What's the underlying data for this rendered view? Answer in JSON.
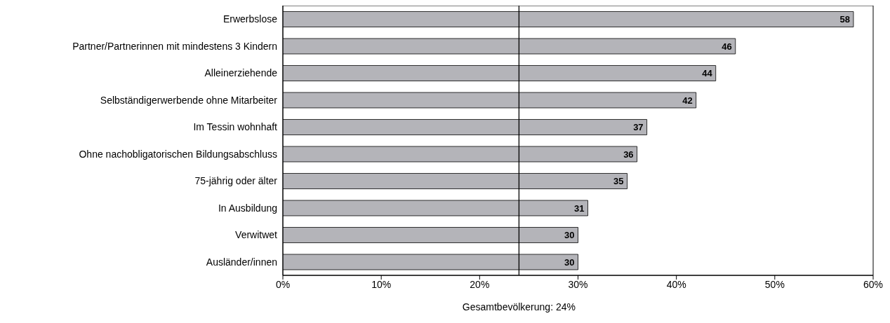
{
  "chart_data": {
    "type": "bar",
    "orientation": "horizontal",
    "categories": [
      "Erwerbslose",
      "Partner/Partnerinnen mit mindestens 3 Kindern",
      "Alleinerziehende",
      "Selbständigerwerbende ohne Mitarbeiter",
      "Im Tessin wohnhaft",
      "Ohne nachobligatorischen Bildungsabschluss",
      "75-jährig oder älter",
      "In Ausbildung",
      "Verwitwet",
      "Ausländer/innen"
    ],
    "values": [
      58,
      46,
      44,
      42,
      37,
      36,
      35,
      31,
      30,
      30
    ],
    "color": "#b4b4b9",
    "xlim": [
      0,
      60
    ],
    "xticks": [
      {
        "value": 0,
        "label": "0%"
      },
      {
        "value": 10,
        "label": "10%"
      },
      {
        "value": 20,
        "label": "20%"
      },
      {
        "value": 30,
        "label": "30%"
      },
      {
        "value": 40,
        "label": "40%"
      },
      {
        "value": 50,
        "label": "50%"
      },
      {
        "value": 60,
        "label": "60%"
      }
    ],
    "ref_lines": [
      {
        "axis": "x",
        "value": 24,
        "label": "Gesamtbevölkerung: 24%",
        "color": "#000000"
      }
    ],
    "data_labels": true
  }
}
